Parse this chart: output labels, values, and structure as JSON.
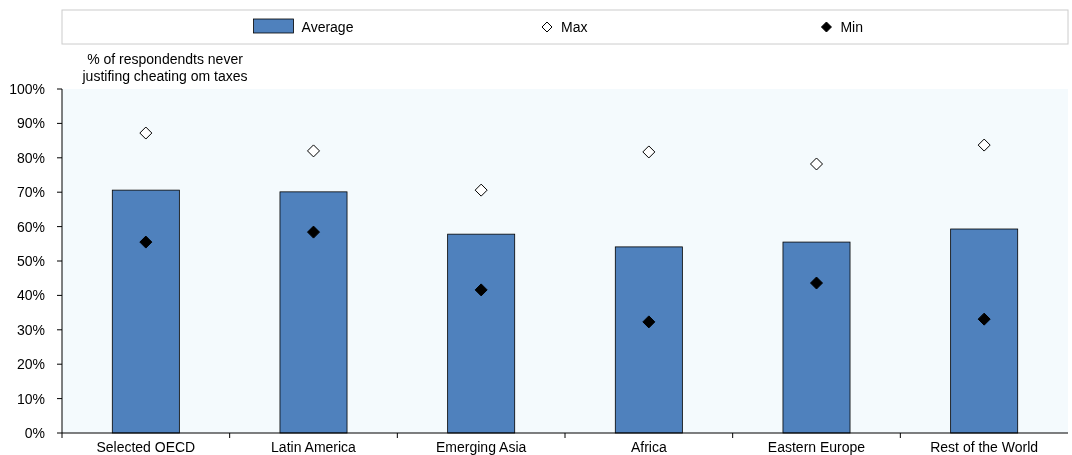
{
  "chart_data": {
    "type": "bar",
    "ylabel": "% of respondendts never justifing cheating om taxes",
    "categories": [
      "Selected OECD",
      "Latin America",
      "Emerging Asia",
      "Africa",
      "Eastern Europe",
      "Rest of the World"
    ],
    "series": [
      {
        "name": "Average",
        "color": "#4f81bd",
        "values": [
          70.6,
          70.1,
          57.8,
          54.1,
          55.5,
          59.3
        ]
      },
      {
        "name": "Max",
        "type": "scatter",
        "marker": "diamond",
        "color": "#ffffff",
        "values": [
          87.2,
          82.0,
          70.6,
          81.7,
          78.2,
          83.7
        ]
      },
      {
        "name": "Min",
        "type": "scatter",
        "marker": "diamond",
        "color": "#000000",
        "values": [
          55.5,
          58.4,
          41.6,
          32.3,
          43.6,
          33.1
        ]
      }
    ],
    "ylim": [
      0,
      100
    ],
    "yticks": [
      {
        "value": 0,
        "label": "0%"
      },
      {
        "value": 10,
        "label": "10%"
      },
      {
        "value": 20,
        "label": "20%"
      },
      {
        "value": 30,
        "label": "30%"
      },
      {
        "value": 40,
        "label": "40%"
      },
      {
        "value": 50,
        "label": "50%"
      },
      {
        "value": 60,
        "label": "60%"
      },
      {
        "value": 70,
        "label": "70%"
      },
      {
        "value": 80,
        "label": "80%"
      },
      {
        "value": 90,
        "label": "90%"
      },
      {
        "value": 100,
        "label": "100%"
      }
    ],
    "legend": "top"
  }
}
